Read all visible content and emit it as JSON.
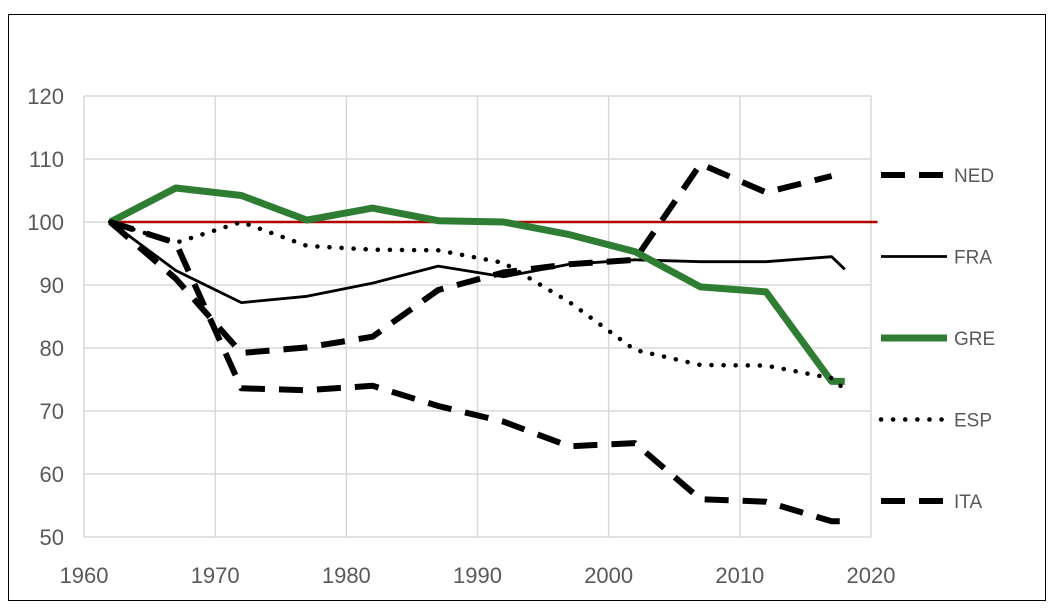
{
  "chart_data": {
    "type": "line",
    "title": "",
    "xlabel": "",
    "ylabel": "",
    "xlim": [
      1960,
      2020
    ],
    "ylim": [
      50,
      120
    ],
    "x_ticks": [
      1960,
      1970,
      1980,
      1990,
      2000,
      2010,
      2020
    ],
    "y_ticks": [
      50,
      60,
      70,
      80,
      90,
      100,
      110,
      120
    ],
    "grid": true,
    "legend_position": "right",
    "reference_line": {
      "y": 100,
      "color": "#b30000"
    },
    "series": [
      {
        "name": "NED",
        "style": "dashed",
        "color": "#000000",
        "points": [
          [
            1962,
            100
          ],
          [
            1967,
            91
          ],
          [
            1972,
            79.2
          ],
          [
            1977,
            80.1
          ],
          [
            1982,
            81.8
          ],
          [
            1987,
            89.2
          ],
          [
            1992,
            92
          ],
          [
            1997,
            93.3
          ],
          [
            2002,
            94
          ],
          [
            2007,
            109.2
          ],
          [
            2012,
            104.7
          ],
          [
            2017,
            107.3
          ]
        ]
      },
      {
        "name": "FRA",
        "style": "solid",
        "color": "#000000",
        "points": [
          [
            1962,
            100
          ],
          [
            1967,
            92.3
          ],
          [
            1972,
            87.2
          ],
          [
            1977,
            88.2
          ],
          [
            1982,
            90.3
          ],
          [
            1987,
            93
          ],
          [
            1992,
            91.3
          ],
          [
            1997,
            93.3
          ],
          [
            2002,
            94
          ],
          [
            2007,
            93.7
          ],
          [
            2012,
            93.7
          ],
          [
            2017,
            94.5
          ],
          [
            2018,
            92.5
          ]
        ]
      },
      {
        "name": "GRE",
        "style": "solid-thick",
        "color": "#2e7d32",
        "points": [
          [
            1962,
            100
          ],
          [
            1967,
            105.4
          ],
          [
            1972,
            104.2
          ],
          [
            1977,
            100.3
          ],
          [
            1982,
            102.2
          ],
          [
            1987,
            100.2
          ],
          [
            1992,
            100
          ],
          [
            1997,
            98
          ],
          [
            2002,
            95.3
          ],
          [
            2007,
            89.7
          ],
          [
            2012,
            88.9
          ],
          [
            2017,
            74.7
          ],
          [
            2018,
            74.7
          ]
        ]
      },
      {
        "name": "ESP",
        "style": "dotted",
        "color": "#000000",
        "points": [
          [
            1962,
            100
          ],
          [
            1967,
            96.7
          ],
          [
            1972,
            100
          ],
          [
            1977,
            96.2
          ],
          [
            1982,
            95.6
          ],
          [
            1987,
            95.5
          ],
          [
            1992,
            93.5
          ],
          [
            1997,
            87.3
          ],
          [
            2002,
            79.7
          ],
          [
            2007,
            77.3
          ],
          [
            2012,
            77.2
          ],
          [
            2017,
            75.2
          ],
          [
            2018,
            73.4
          ]
        ]
      },
      {
        "name": "ITA",
        "style": "dashed",
        "color": "#000000",
        "points": [
          [
            1962,
            100
          ],
          [
            1967,
            96.7
          ],
          [
            1972,
            73.6
          ],
          [
            1977,
            73.3
          ],
          [
            1982,
            74
          ],
          [
            1987,
            70.8
          ],
          [
            1992,
            68.3
          ],
          [
            1997,
            64.4
          ],
          [
            2002,
            64.9
          ],
          [
            2007,
            56
          ],
          [
            2012,
            55.6
          ],
          [
            2017,
            52.5
          ],
          [
            2018,
            52.5
          ]
        ]
      }
    ]
  }
}
